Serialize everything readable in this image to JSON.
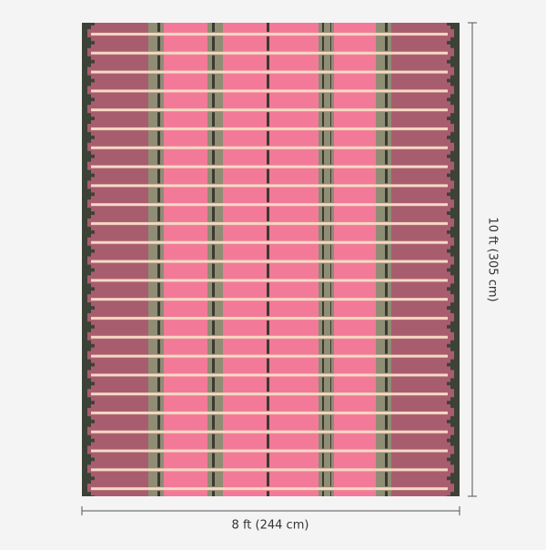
{
  "dimensions": {
    "height_label": "10 ft (305 cm)",
    "width_label": "8 ft (244 cm)"
  }
}
